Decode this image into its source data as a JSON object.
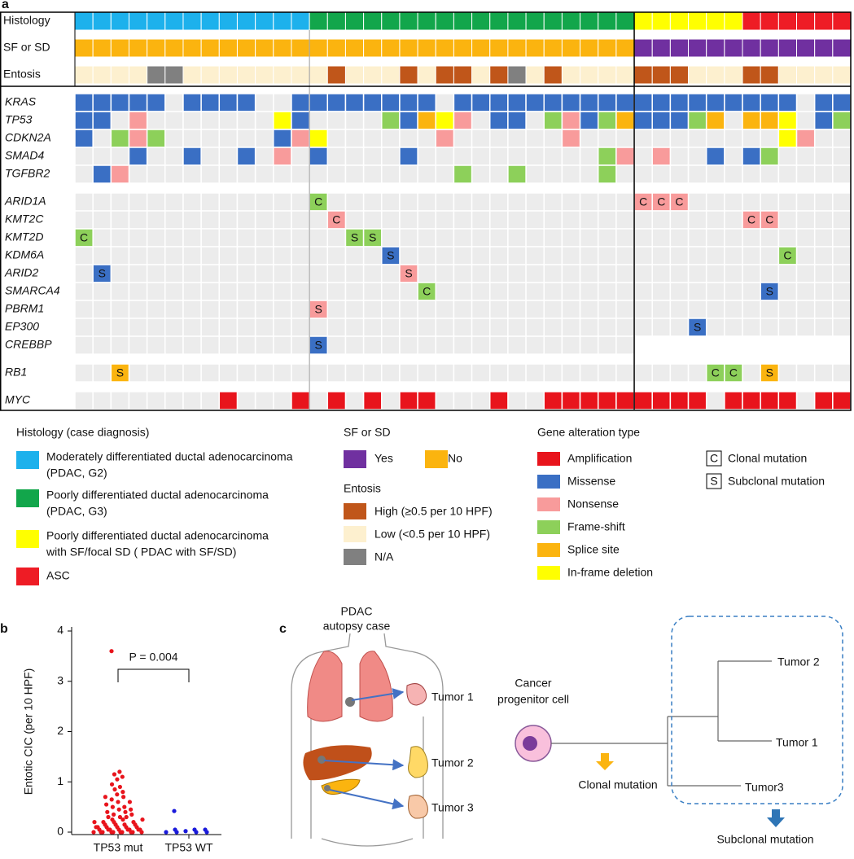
{
  "oncoprint": {
    "label": "a",
    "rows": [
      {
        "label": "Histology",
        "legend": "histology",
        "cells": [
          0,
          0,
          0,
          0,
          0,
          0,
          0,
          0,
          0,
          0,
          0,
          0,
          0,
          1,
          1,
          1,
          1,
          1,
          1,
          1,
          1,
          1,
          1,
          1,
          1,
          1,
          1,
          1,
          1,
          1,
          1,
          2,
          2,
          2,
          2,
          2,
          2,
          3,
          3,
          3,
          3,
          3,
          3
        ]
      },
      {
        "label": "SF or SD",
        "legend": "sf_sd",
        "cells": [
          1,
          1,
          1,
          1,
          1,
          1,
          1,
          1,
          1,
          1,
          1,
          1,
          1,
          1,
          1,
          1,
          1,
          1,
          1,
          1,
          1,
          1,
          1,
          1,
          1,
          1,
          1,
          1,
          1,
          1,
          1,
          0,
          0,
          0,
          0,
          0,
          0,
          0,
          0,
          0,
          0,
          0,
          0
        ]
      },
      {
        "label": "Entosis",
        "legend": "entosis",
        "cells": [
          1,
          1,
          1,
          1,
          2,
          2,
          1,
          1,
          1,
          1,
          1,
          1,
          1,
          1,
          0,
          1,
          1,
          1,
          0,
          1,
          0,
          0,
          1,
          0,
          2,
          1,
          0,
          1,
          1,
          1,
          1,
          0,
          0,
          0,
          1,
          1,
          1,
          0,
          0,
          1,
          1,
          1,
          1
        ]
      }
    ],
    "genes": [
      {
        "name": "KRAS",
        "group": 0,
        "alterations": [
          [
            0,
            1
          ],
          [
            1,
            1
          ],
          [
            2,
            1
          ],
          [
            3,
            1
          ],
          [
            4,
            1
          ],
          [
            6,
            1
          ],
          [
            7,
            1
          ],
          [
            8,
            1
          ],
          [
            9,
            1
          ],
          [
            12,
            1
          ],
          [
            13,
            1
          ],
          [
            14,
            1
          ],
          [
            15,
            1
          ],
          [
            16,
            1
          ],
          [
            17,
            1
          ],
          [
            18,
            1
          ],
          [
            19,
            1
          ],
          [
            21,
            1
          ],
          [
            22,
            1
          ],
          [
            23,
            1
          ],
          [
            24,
            1
          ],
          [
            25,
            1
          ],
          [
            26,
            1
          ],
          [
            27,
            1
          ],
          [
            28,
            1
          ],
          [
            29,
            1
          ],
          [
            30,
            1
          ],
          [
            31,
            1
          ],
          [
            32,
            1
          ],
          [
            33,
            1
          ],
          [
            34,
            1
          ],
          [
            35,
            1
          ],
          [
            36,
            1
          ],
          [
            37,
            1
          ],
          [
            38,
            1
          ],
          [
            39,
            1
          ],
          [
            41,
            1
          ],
          [
            42,
            1
          ]
        ]
      },
      {
        "name": "TP53",
        "group": 0,
        "alterations": [
          [
            0,
            1
          ],
          [
            1,
            1
          ],
          [
            3,
            2
          ],
          [
            11,
            5
          ],
          [
            12,
            1
          ],
          [
            17,
            3
          ],
          [
            18,
            1
          ],
          [
            19,
            4
          ],
          [
            20,
            5
          ],
          [
            21,
            2
          ],
          [
            23,
            1
          ],
          [
            24,
            1
          ],
          [
            26,
            3
          ],
          [
            27,
            2
          ],
          [
            28,
            1
          ],
          [
            29,
            3
          ],
          [
            30,
            4
          ],
          [
            31,
            1
          ],
          [
            32,
            1
          ],
          [
            33,
            1
          ],
          [
            34,
            3
          ],
          [
            35,
            4
          ],
          [
            37,
            4
          ],
          [
            38,
            4
          ],
          [
            39,
            5
          ],
          [
            41,
            1
          ],
          [
            42,
            3
          ]
        ]
      },
      {
        "name": "CDKN2A",
        "group": 0,
        "alterations": [
          [
            0,
            1
          ],
          [
            2,
            3
          ],
          [
            3,
            2
          ],
          [
            4,
            3
          ],
          [
            11,
            1
          ],
          [
            12,
            2
          ],
          [
            13,
            5
          ],
          [
            20,
            2
          ],
          [
            27,
            2
          ],
          [
            39,
            5
          ],
          [
            40,
            2
          ]
        ]
      },
      {
        "name": "SMAD4",
        "group": 0,
        "alterations": [
          [
            3,
            1
          ],
          [
            6,
            1
          ],
          [
            9,
            1
          ],
          [
            11,
            2
          ],
          [
            13,
            1
          ],
          [
            18,
            1
          ],
          [
            29,
            3
          ],
          [
            30,
            2
          ],
          [
            32,
            2
          ],
          [
            35,
            1
          ],
          [
            37,
            1
          ],
          [
            38,
            3
          ]
        ]
      },
      {
        "name": "TGFBR2",
        "group": 0,
        "alterations": [
          [
            1,
            1
          ],
          [
            2,
            2
          ],
          [
            21,
            3
          ],
          [
            24,
            3
          ],
          [
            29,
            3
          ]
        ]
      },
      {
        "name": "ARID1A",
        "group": 1,
        "alterations": [
          [
            13,
            3,
            "C"
          ],
          [
            31,
            2,
            "C"
          ],
          [
            32,
            2,
            "C"
          ],
          [
            33,
            2,
            "C"
          ]
        ]
      },
      {
        "name": "KMT2C",
        "group": 1,
        "alterations": [
          [
            14,
            2,
            "C"
          ],
          [
            37,
            2,
            "C"
          ],
          [
            38,
            2,
            "C"
          ]
        ]
      },
      {
        "name": "KMT2D",
        "group": 1,
        "alterations": [
          [
            0,
            3,
            "C"
          ],
          [
            15,
            3,
            "S"
          ],
          [
            16,
            3,
            "S"
          ]
        ]
      },
      {
        "name": "KDM6A",
        "group": 1,
        "alterations": [
          [
            17,
            1,
            "S"
          ],
          [
            39,
            3,
            "C"
          ]
        ]
      },
      {
        "name": "ARID2",
        "group": 1,
        "alterations": [
          [
            1,
            1,
            "S"
          ],
          [
            18,
            2,
            "S"
          ]
        ]
      },
      {
        "name": "SMARCA4",
        "group": 1,
        "alterations": [
          [
            19,
            3,
            "C"
          ],
          [
            38,
            1,
            "S"
          ]
        ]
      },
      {
        "name": "PBRM1",
        "group": 1,
        "alterations": [
          [
            13,
            2,
            "S"
          ]
        ]
      },
      {
        "name": "EP300",
        "group": 1,
        "alterations": [
          [
            34,
            1,
            "S"
          ]
        ]
      },
      {
        "name": "CREBBP",
        "group": 1,
        "alterations": [
          [
            13,
            1,
            "S"
          ]
        ],
        "untested": [
          31,
          32,
          33,
          34,
          35,
          36,
          37,
          38,
          39,
          40,
          41,
          42
        ]
      },
      {
        "name": "RB1",
        "group": 2,
        "alterations": [
          [
            2,
            4,
            "S"
          ],
          [
            35,
            3,
            "C"
          ],
          [
            36,
            3,
            "C"
          ],
          [
            38,
            4,
            "S"
          ]
        ]
      },
      {
        "name": "MYC",
        "group": 3,
        "alterations": [
          [
            8,
            0
          ],
          [
            12,
            0
          ],
          [
            14,
            0
          ],
          [
            16,
            0
          ],
          [
            18,
            0
          ],
          [
            19,
            0
          ],
          [
            23,
            0
          ],
          [
            26,
            0
          ],
          [
            27,
            0
          ],
          [
            28,
            0
          ],
          [
            29,
            0
          ],
          [
            30,
            0
          ],
          [
            31,
            0
          ],
          [
            32,
            0
          ],
          [
            33,
            0
          ],
          [
            34,
            0
          ],
          [
            36,
            0
          ],
          [
            37,
            0
          ],
          [
            38,
            0
          ],
          [
            39,
            0
          ],
          [
            41,
            0
          ],
          [
            42,
            0
          ]
        ]
      }
    ]
  },
  "legend": {
    "histology": {
      "title": "Histology (case diagnosis)",
      "items": [
        {
          "lines": [
            "Moderately differentiated ductal adenocarcinoma",
            "(PDAC, G2)"
          ],
          "color": "#1db1ec"
        },
        {
          "lines": [
            "Poorly differentiated ductal adenocarcinoma",
            "(PDAC, G3)"
          ],
          "color": "#12a64b"
        },
        {
          "lines": [
            "Poorly differentiated ductal adenocarcinoma",
            "with SF/focal SD ( PDAC with SF/SD)"
          ],
          "color": "#ffff00"
        },
        {
          "lines": [
            "ASC"
          ],
          "color": "#ee1c25"
        }
      ]
    },
    "sf_sd": {
      "title": "SF or SD",
      "items": [
        {
          "label": "Yes",
          "color": "#7030a0"
        },
        {
          "label": "No",
          "color": "#fbb40f"
        }
      ]
    },
    "entosis": {
      "title": "Entosis",
      "items": [
        {
          "label": "High (≥0.5 per 10 HPF)",
          "color": "#c0561a"
        },
        {
          "label": "Low (<0.5 per 10 HPF)",
          "color": "#fdf0cf"
        },
        {
          "label": "N/A",
          "color": "#808080"
        }
      ]
    },
    "alteration": {
      "title": "Gene alteration type",
      "items": [
        {
          "label": "Amplification",
          "color": "#e8141c"
        },
        {
          "label": "Missense",
          "color": "#3a6fc4"
        },
        {
          "label": "Nonsense",
          "color": "#f89b9b"
        },
        {
          "label": "Frame-shift",
          "color": "#8dd05a"
        },
        {
          "label": "Splice site",
          "color": "#fbb40f"
        },
        {
          "label": "In-frame deletion",
          "color": "#ffff00"
        }
      ]
    },
    "clonality": [
      {
        "symbol": "C",
        "label": "Clonal mutation"
      },
      {
        "symbol": "S",
        "label": "Subclonal mutation"
      }
    ]
  },
  "chart_data": {
    "type": "strip",
    "label": "b",
    "annotation": "P = 0.004",
    "ylabel": "Entotic CIC (per 10 HPF)",
    "categories": [
      "TP53 mut",
      "TP53 WT"
    ],
    "colors": [
      "#e8141c",
      "#1a1adb"
    ],
    "values": [
      [
        3.6,
        1.2,
        1.15,
        1.1,
        1.05,
        0.95,
        0.9,
        0.85,
        0.8,
        0.75,
        0.7,
        0.7,
        0.65,
        0.6,
        0.6,
        0.55,
        0.5,
        0.5,
        0.45,
        0.45,
        0.4,
        0.4,
        0.35,
        0.35,
        0.3,
        0.3,
        0.3,
        0.25,
        0.25,
        0.25,
        0.2,
        0.2,
        0.2,
        0.2,
        0.15,
        0.15,
        0.15,
        0.15,
        0.1,
        0.1,
        0.1,
        0.1,
        0.1,
        0.1,
        0.05,
        0.05,
        0.05,
        0.05,
        0.05,
        0.05,
        0.05,
        0.05,
        0,
        0,
        0,
        0,
        0,
        0,
        0,
        0,
        0,
        0
      ],
      [
        0.42,
        0.05,
        0.05,
        0.05,
        0.02,
        0,
        0,
        0,
        0
      ]
    ],
    "ylim": [
      0,
      4
    ],
    "yticks": [
      0,
      1,
      2,
      3,
      4
    ]
  },
  "diagram": {
    "label": "c",
    "case_label": [
      "PDAC",
      "autopsy case"
    ],
    "tumors": [
      "Tumor 1",
      "Tumor 2",
      "Tumor 3"
    ],
    "cell_label": [
      "Cancer",
      "progenitor cell"
    ],
    "leaves": [
      "Tumor 2",
      "Tumor 1",
      "Tumor3"
    ],
    "clonal": "Clonal mutation",
    "subclonal": "Subclonal mutation"
  }
}
